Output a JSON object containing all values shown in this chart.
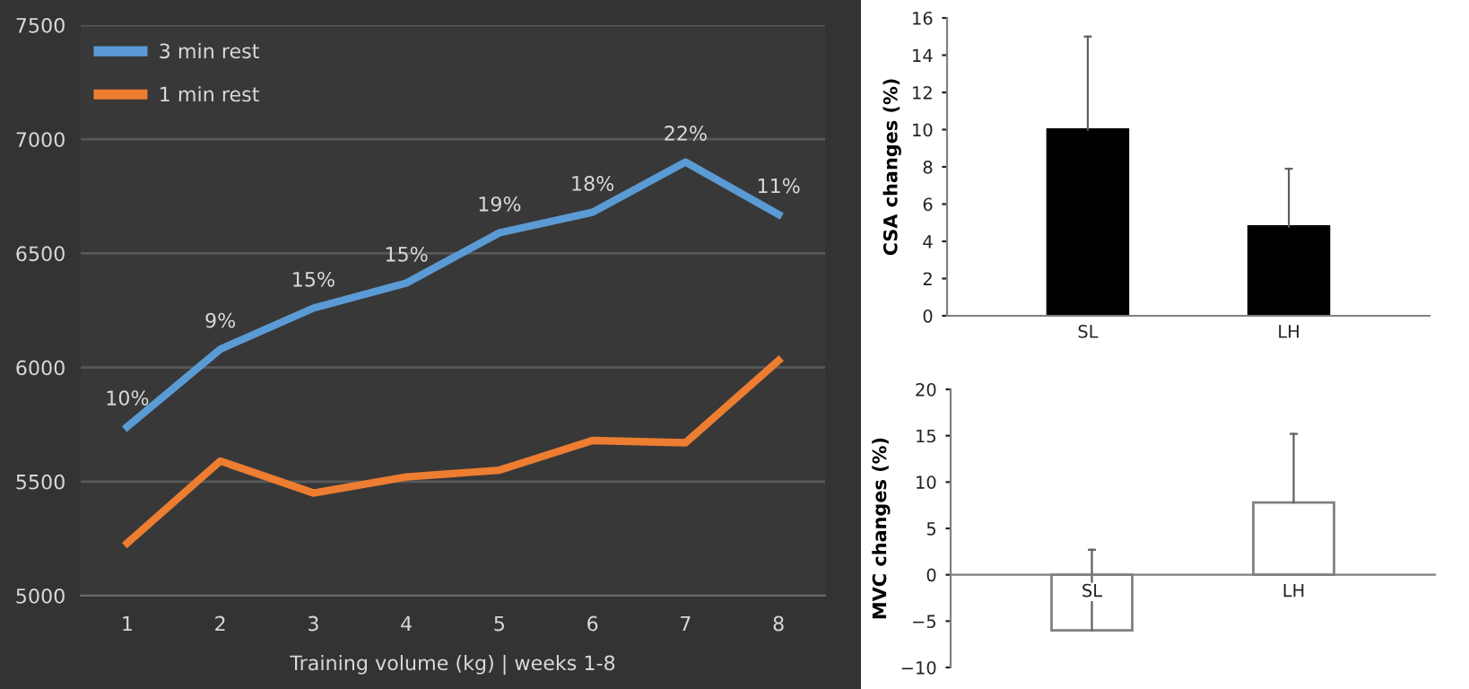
{
  "chart_data": [
    {
      "type": "line",
      "categories": [
        "1",
        "2",
        "3",
        "4",
        "5",
        "6",
        "7",
        "8"
      ],
      "xlabel": "Training volume (kg) | weeks 1-8",
      "ylim": [
        5000,
        7500
      ],
      "yticks": [
        5000,
        5500,
        6000,
        6500,
        7000,
        7500
      ],
      "grid": "y",
      "legend": "top left",
      "marker": "none",
      "annotations": [
        {
          "text": "10%",
          "x": "1",
          "y": 5740
        },
        {
          "text": "9%",
          "x": "2",
          "y": 6080
        },
        {
          "text": "15%",
          "x": "3",
          "y": 6260
        },
        {
          "text": "15%",
          "x": "4",
          "y": 6370
        },
        {
          "text": "19%",
          "x": "5",
          "y": 6590
        },
        {
          "text": "18%",
          "x": "6",
          "y": 6680
        },
        {
          "text": "22%",
          "x": "7",
          "y": 6900
        },
        {
          "text": "11%",
          "x": "8",
          "y": 6670
        }
      ],
      "series": [
        {
          "name": "3 min rest",
          "color": "#5b9bd5",
          "values": [
            5740,
            6080,
            6260,
            6370,
            6590,
            6680,
            6900,
            6670
          ]
        },
        {
          "name": "1 min rest",
          "color": "#ed7d31",
          "values": [
            5230,
            5590,
            5450,
            5520,
            5550,
            5680,
            5670,
            6030
          ]
        }
      ]
    },
    {
      "type": "bar",
      "categories": [
        "SL",
        "LH"
      ],
      "values": [
        10,
        4.8
      ],
      "color": "#000000",
      "errors": [
        [
          10,
          15
        ],
        [
          4.8,
          7.9
        ]
      ],
      "ylabel": "CSA changes (%)",
      "ylim": [
        0,
        16
      ],
      "yticks": [
        0,
        2,
        4,
        6,
        8,
        10,
        12,
        14,
        16
      ]
    },
    {
      "type": "bar",
      "categories": [
        "SL",
        "LH"
      ],
      "values": [
        -6,
        7.8
      ],
      "color": "#ffffff",
      "errors": [
        [
          -6,
          2.7
        ],
        [
          7.8,
          15.2
        ]
      ],
      "ylabel": "MVC changes (%)",
      "ylim": [
        -10,
        20
      ],
      "yticks": [
        {
          "value": -10,
          "label": "−10"
        },
        {
          "value": -5,
          "label": "−5"
        },
        0,
        5,
        10,
        15,
        20
      ]
    }
  ]
}
